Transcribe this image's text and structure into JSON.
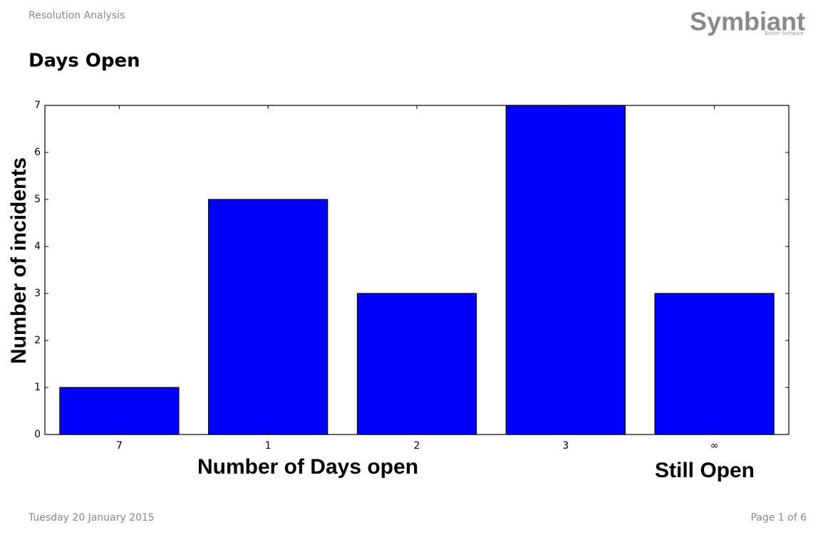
{
  "header": {
    "title": "Resolution Analysis",
    "logo": "Symbiant",
    "logo_tagline": "Better Software"
  },
  "page_title": "Days Open",
  "chart_data": {
    "type": "bar",
    "categories": [
      "7",
      "1",
      "2",
      "3",
      "∞"
    ],
    "values": [
      1,
      5,
      3,
      7,
      3
    ],
    "color": "#0000ff",
    "ylim": [
      0,
      7
    ],
    "yticks": [
      0,
      1,
      2,
      3,
      4,
      5,
      6,
      7
    ],
    "x_label": "Number of Days open",
    "y_label": "Number of incidents",
    "annotation": "Still Open",
    "grid": false
  },
  "footer": {
    "date": "Tuesday 20 January 2015",
    "page": "Page 1 of 6"
  }
}
